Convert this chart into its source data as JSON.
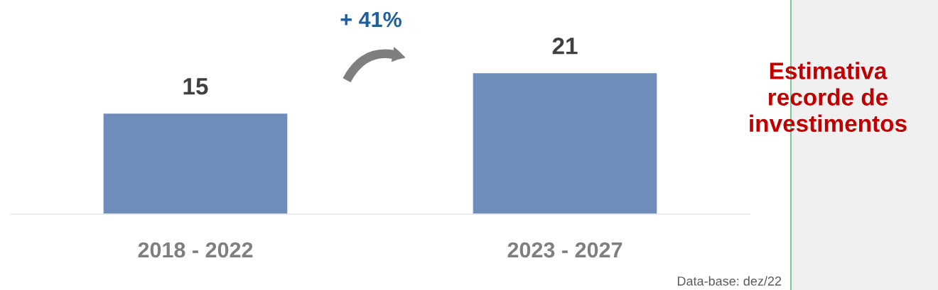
{
  "chart_data": {
    "type": "bar",
    "categories": [
      "2018 - 2022",
      "2023 - 2027"
    ],
    "values": [
      15,
      21
    ],
    "color": "#6e8db9",
    "data_labels": true,
    "grid": false,
    "legend": false,
    "tick_labels": "x",
    "annotations": [
      "+ 41%",
      "Estimativa\nrecorde de\ninvestimentos",
      "Data-base: dez/22"
    ]
  }
}
